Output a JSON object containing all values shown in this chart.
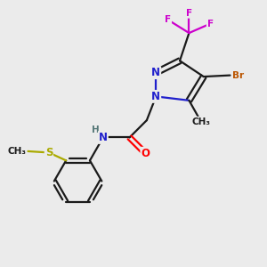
{
  "bg_color": "#ebebeb",
  "bond_color": "#1a1a1a",
  "bond_width": 1.6,
  "atom_colors": {
    "N": "#2020cc",
    "O": "#ff0000",
    "F": "#cc00cc",
    "Br": "#bb5500",
    "S": "#aaaa00",
    "C": "#1a1a1a",
    "H": "#557777"
  },
  "font_size": 8.5,
  "font_size_sub": 7.5
}
